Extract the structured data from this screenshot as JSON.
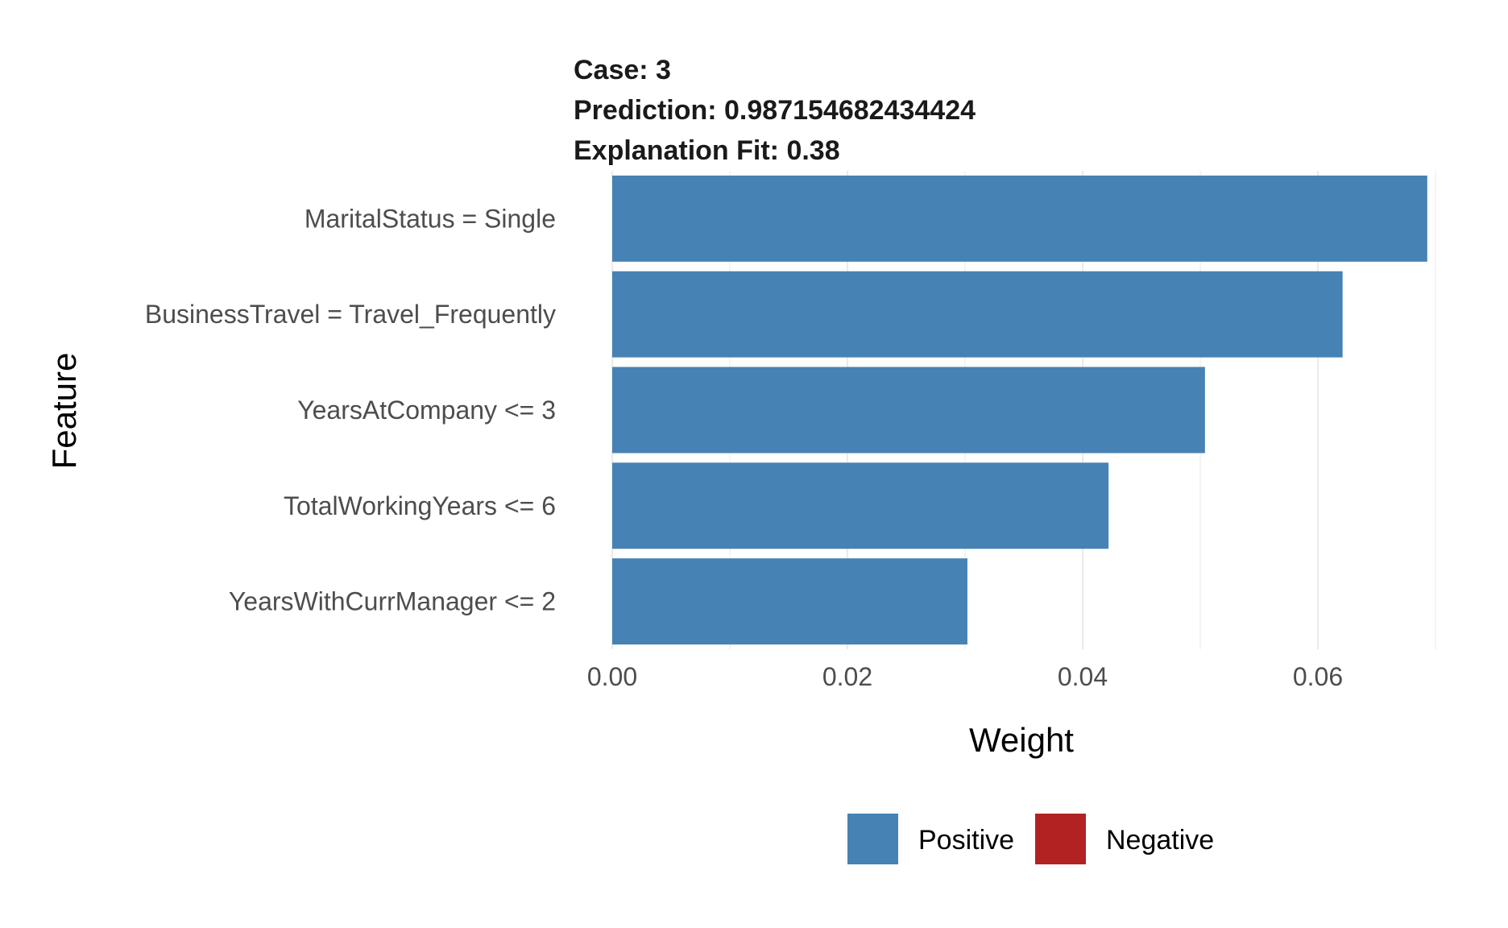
{
  "chart_data": {
    "type": "bar",
    "orientation": "horizontal",
    "title_lines": [
      "Case: 3",
      "Prediction: 0.987154682434424",
      "Explanation Fit: 0.38"
    ],
    "xlabel": "Weight",
    "ylabel": "Feature",
    "categories": [
      "MaritalStatus = Single",
      "BusinessTravel = Travel_Frequently",
      "YearsAtCompany <= 3",
      "TotalWorkingYears <= 6",
      "YearsWithCurrManager <= 2"
    ],
    "values": [
      0.0693,
      0.0621,
      0.0504,
      0.0422,
      0.0302
    ],
    "support": [
      "Positive",
      "Positive",
      "Positive",
      "Positive",
      "Positive"
    ],
    "xlim": [
      0,
      0.07
    ],
    "x_ticks": [
      0.0,
      0.02,
      0.04,
      0.06
    ],
    "x_tick_labels": [
      "0.00",
      "0.02",
      "0.04",
      "0.06"
    ],
    "grid": true,
    "legend": {
      "position": "bottom",
      "entries": [
        {
          "label": "Positive",
          "color": "#4682B4"
        },
        {
          "label": "Negative",
          "color": "#B22222"
        }
      ]
    }
  }
}
